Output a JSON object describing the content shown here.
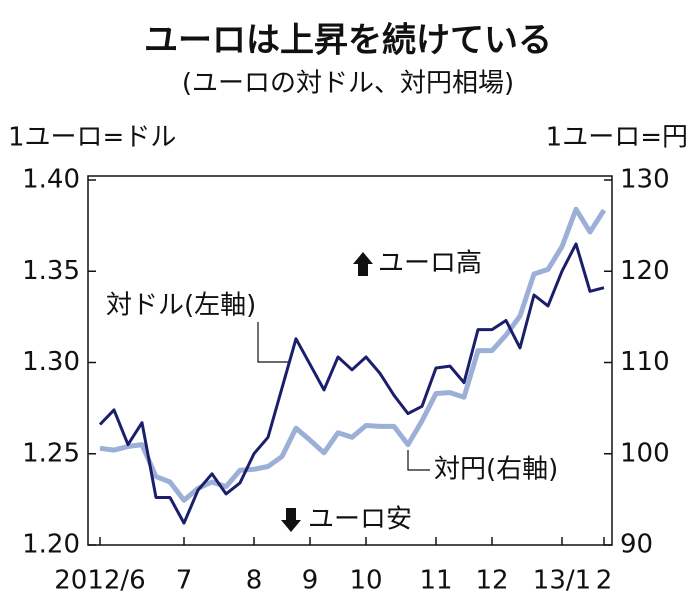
{
  "chart_data": {
    "type": "line",
    "title": "ユーロは上昇を続けている",
    "subtitle": "(ユーロの対ドル、対円相場)",
    "y_label": "1ユーロ=ドル",
    "y2_label": "1ユーロ=円",
    "categories": [
      "2012/6",
      null,
      null,
      null,
      null,
      null,
      "7",
      null,
      null,
      null,
      null,
      "8",
      null,
      null,
      null,
      "9",
      null,
      null,
      null,
      "10",
      null,
      null,
      null,
      null,
      "11",
      null,
      null,
      null,
      "12",
      null,
      null,
      null,
      null,
      "13/1",
      null,
      null,
      "2"
    ],
    "series": [
      {
        "name": "対ドル(左軸)",
        "color": "#1b1f6b",
        "axis": "y",
        "values": [
          1.266,
          1.274,
          1.255,
          1.267,
          1.226,
          1.226,
          1.212,
          1.23,
          1.239,
          1.228,
          1.234,
          1.25,
          1.259,
          1.286,
          1.313,
          1.299,
          1.285,
          1.303,
          1.296,
          1.303,
          1.294,
          1.282,
          1.272,
          1.276,
          1.297,
          1.298,
          1.289,
          1.318,
          1.318,
          1.323,
          1.308,
          1.337,
          1.331,
          1.35,
          1.365,
          1.339,
          1.341
        ]
      },
      {
        "name": "対円(右軸)",
        "color": "#9cafd6",
        "axis": "y2",
        "values": [
          100.6,
          100.4,
          100.8,
          101.0,
          97.5,
          96.9,
          94.9,
          96.2,
          96.9,
          96.4,
          98.2,
          98.3,
          98.6,
          99.7,
          102.8,
          101.5,
          100.1,
          102.3,
          101.8,
          103.1,
          103.0,
          103.0,
          101.0,
          103.6,
          106.6,
          106.7,
          106.2,
          111.3,
          111.3,
          113.0,
          115.1,
          119.7,
          120.2,
          122.7,
          126.8,
          124.3,
          126.7
        ]
      }
    ],
    "annotations": [
      "ユーロ高",
      "ユーロ安"
    ],
    "ylim": [
      1.2,
      1.4
    ],
    "yticks": [
      {
        "value": 1.2,
        "label": "1.20"
      },
      1.25,
      {
        "value": 1.3,
        "label": "1.30"
      },
      1.35,
      {
        "value": 1.4,
        "label": "1.40"
      }
    ],
    "y2lim": [
      90,
      130
    ],
    "y2ticks": [
      90,
      100,
      110,
      120,
      130
    ]
  }
}
